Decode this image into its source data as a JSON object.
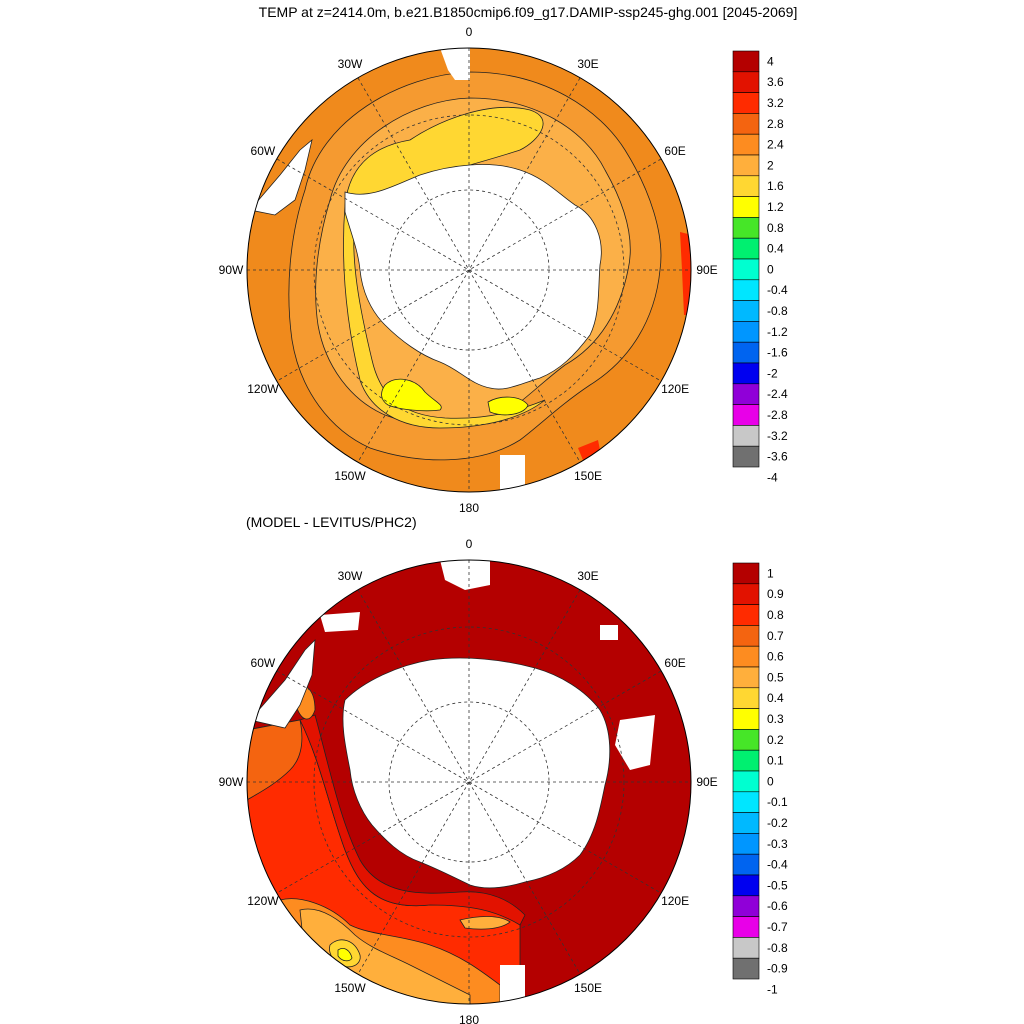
{
  "title": "TEMP at z=2414.0m, b.e21.B1850cmip6.f09_g17.DAMIP-ssp245-ghg.001 [2045-2069]",
  "subtitle": "(MODEL - LEVITUS/PHC2)",
  "longitude_labels": [
    "0",
    "30E",
    "60E",
    "90E",
    "120E",
    "150E",
    "180",
    "150W",
    "120W",
    "90W",
    "60W",
    "30W"
  ],
  "colors": {
    "top_scale": [
      "#707070",
      "#c8c8c8",
      "#e800e8",
      "#9000d8",
      "#0000f0",
      "#0064f0",
      "#0096ff",
      "#00b9ff",
      "#00e6ff",
      "#00ffd0",
      "#00f070",
      "#46e628",
      "#ffff00",
      "#ffd732",
      "#ffaf3c",
      "#fd8c20",
      "#f46410",
      "#ff2b00",
      "#e21200",
      "#b40000"
    ],
    "bottom_scale": [
      "#707070",
      "#c8c8c8",
      "#e800e8",
      "#9000d8",
      "#0000f0",
      "#0064f0",
      "#0096ff",
      "#00b9ff",
      "#00e6ff",
      "#00ffd0",
      "#00f070",
      "#46e628",
      "#ffff00",
      "#ffd732",
      "#ffaf3c",
      "#fd8c20",
      "#f46410",
      "#ff2b00",
      "#e21200",
      "#b40000"
    ],
    "land": "#ffffff"
  },
  "colorbar_top": {
    "labels": [
      "4",
      "3.6",
      "3.2",
      "2.8",
      "2.4",
      "2",
      "1.6",
      "1.2",
      "0.8",
      "0.4",
      "0",
      "-0.4",
      "-0.8",
      "-1.2",
      "-1.6",
      "-2",
      "-2.4",
      "-2.8",
      "-3.2",
      "-3.6",
      "-4"
    ]
  },
  "colorbar_bottom": {
    "labels": [
      "1",
      "0.9",
      "0.8",
      "0.7",
      "0.6",
      "0.5",
      "0.4",
      "0.3",
      "0.2",
      "0.1",
      "0",
      "-0.1",
      "-0.2",
      "-0.3",
      "-0.4",
      "-0.5",
      "-0.6",
      "-0.7",
      "-0.8",
      "-0.9",
      "-1"
    ]
  }
}
